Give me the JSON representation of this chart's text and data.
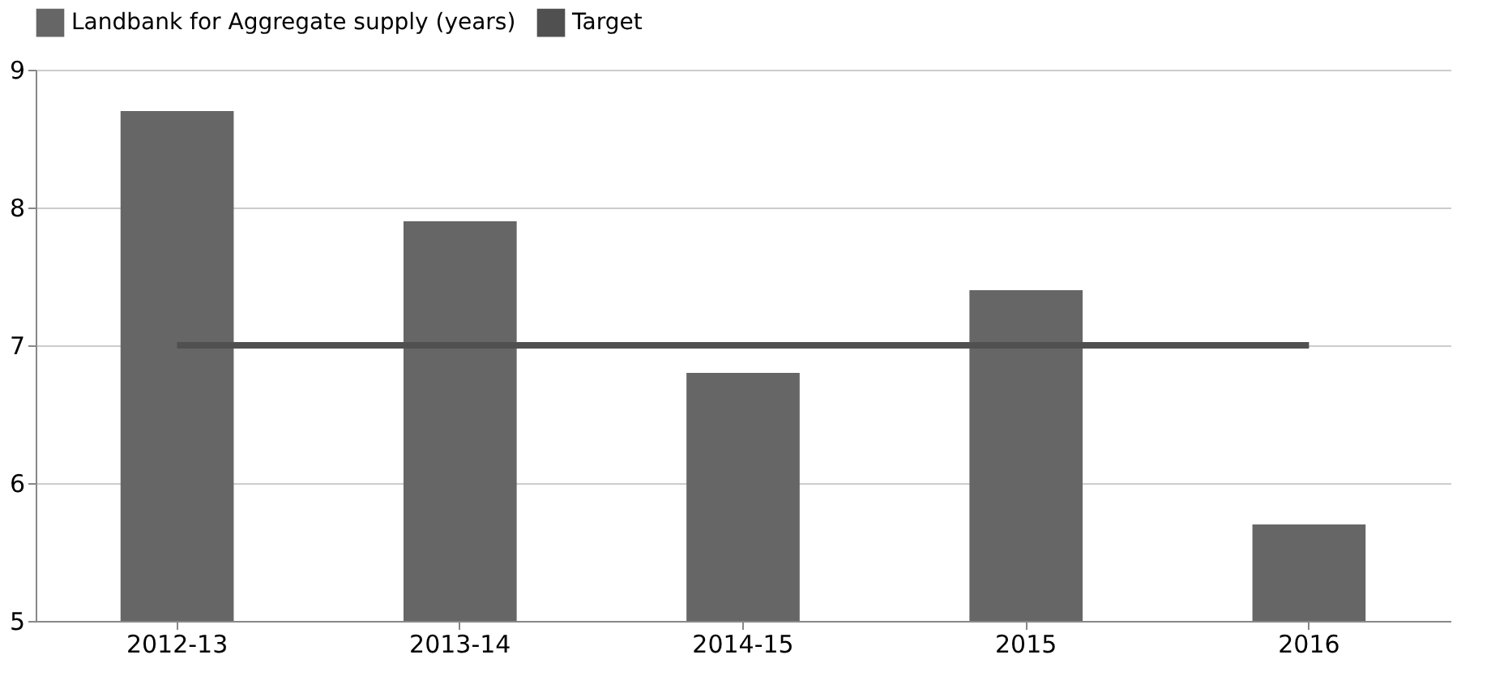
{
  "chart_data": {
    "type": "bar",
    "categories": [
      "2012-13",
      "2013-14",
      "2014-15",
      "2015",
      "2016"
    ],
    "series": [
      {
        "name": "Landbank for Aggregate supply (years)",
        "color": "#666666",
        "values": [
          8.7,
          7.9,
          6.8,
          7.4,
          5.7
        ]
      },
      {
        "name": "Target",
        "type": "line",
        "color": "#505050",
        "values": [
          7,
          7,
          7,
          7,
          7
        ]
      }
    ],
    "ylim": [
      5,
      9
    ],
    "yticks": [
      5,
      6,
      7,
      8,
      9
    ],
    "grid": "y",
    "legend": "top"
  }
}
